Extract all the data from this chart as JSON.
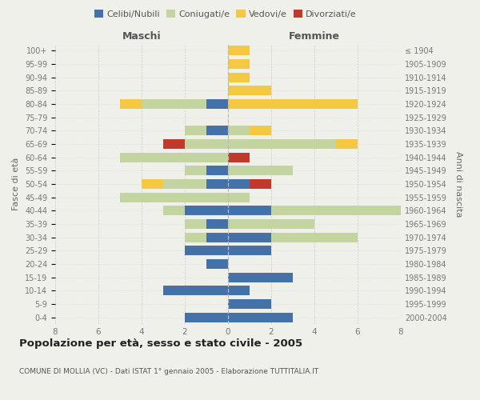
{
  "age_groups": [
    "0-4",
    "5-9",
    "10-14",
    "15-19",
    "20-24",
    "25-29",
    "30-34",
    "35-39",
    "40-44",
    "45-49",
    "50-54",
    "55-59",
    "60-64",
    "65-69",
    "70-74",
    "75-79",
    "80-84",
    "85-89",
    "90-94",
    "95-99",
    "100+"
  ],
  "birth_years": [
    "2000-2004",
    "1995-1999",
    "1990-1994",
    "1985-1989",
    "1980-1984",
    "1975-1979",
    "1970-1974",
    "1965-1969",
    "1960-1964",
    "1955-1959",
    "1950-1954",
    "1945-1949",
    "1940-1944",
    "1935-1939",
    "1930-1934",
    "1925-1929",
    "1920-1924",
    "1915-1919",
    "1910-1914",
    "1905-1909",
    "≤ 1904"
  ],
  "male": {
    "celibi": [
      2,
      0,
      3,
      0,
      1,
      2,
      1,
      1,
      2,
      0,
      1,
      1,
      0,
      0,
      1,
      0,
      1,
      0,
      0,
      0,
      0
    ],
    "coniugati": [
      0,
      0,
      0,
      0,
      0,
      0,
      1,
      1,
      1,
      5,
      2,
      1,
      5,
      2,
      1,
      0,
      3,
      0,
      0,
      0,
      0
    ],
    "vedovi": [
      0,
      0,
      0,
      0,
      0,
      0,
      0,
      0,
      0,
      0,
      1,
      0,
      0,
      0,
      0,
      0,
      1,
      0,
      0,
      0,
      0
    ],
    "divorziati": [
      0,
      0,
      0,
      0,
      0,
      0,
      0,
      0,
      0,
      0,
      0,
      0,
      0,
      1,
      0,
      0,
      0,
      0,
      0,
      0,
      0
    ]
  },
  "female": {
    "nubili": [
      3,
      2,
      1,
      3,
      0,
      2,
      2,
      0,
      2,
      0,
      1,
      0,
      0,
      0,
      0,
      0,
      0,
      0,
      0,
      0,
      0
    ],
    "coniugate": [
      0,
      0,
      0,
      0,
      0,
      0,
      4,
      4,
      6,
      1,
      0,
      3,
      0,
      5,
      1,
      0,
      0,
      0,
      0,
      0,
      0
    ],
    "vedove": [
      0,
      0,
      0,
      0,
      0,
      0,
      0,
      0,
      0,
      0,
      0,
      0,
      0,
      1,
      1,
      0,
      6,
      2,
      1,
      1,
      1
    ],
    "divorziate": [
      0,
      0,
      0,
      0,
      0,
      0,
      0,
      0,
      0,
      0,
      1,
      0,
      1,
      0,
      0,
      0,
      0,
      0,
      0,
      0,
      0
    ]
  },
  "colors": {
    "celibi_nubili": "#4472a8",
    "coniugati": "#c4d4a0",
    "vedovi": "#f5c842",
    "divorziati": "#c0392b"
  },
  "xlim": 8,
  "title": "Popolazione per età, sesso e stato civile - 2005",
  "subtitle": "COMUNE DI MOLLIA (VC) - Dati ISTAT 1° gennaio 2005 - Elaborazione TUTTITALIA.IT",
  "ylabel_left": "Fasce di età",
  "ylabel_right": "Anni di nascita",
  "xlabel_left": "Maschi",
  "xlabel_right": "Femmine",
  "bg_color": "#f0f0eb"
}
